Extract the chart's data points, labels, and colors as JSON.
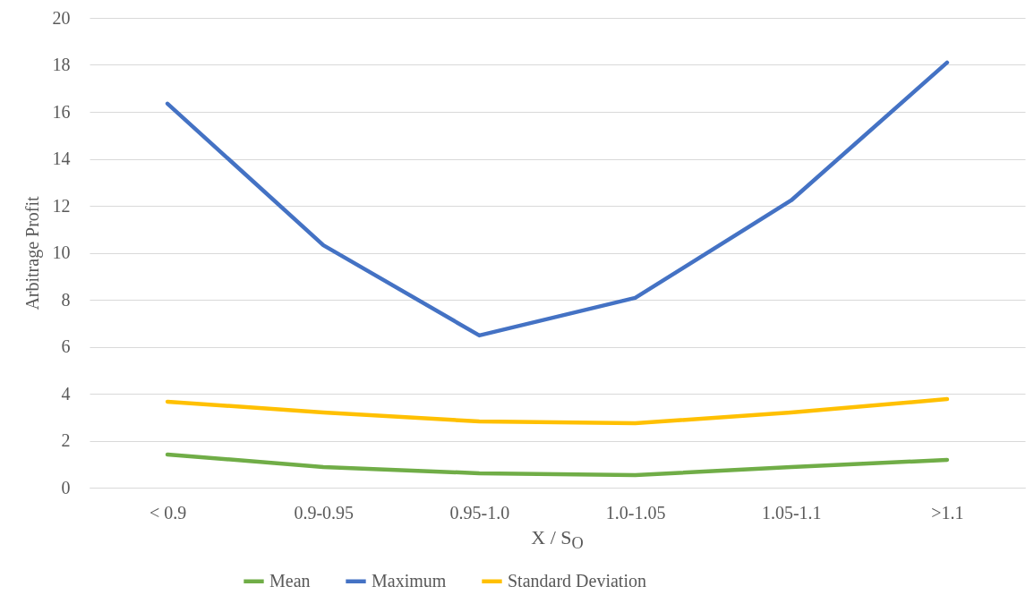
{
  "chart_data": {
    "type": "line",
    "xlabel": "X / S$_{O}$",
    "ylabel": "Arbitrage Profit",
    "categories": [
      "< 0.9",
      "0.9-0.95",
      "0.95-1.0",
      "1.0-1.05",
      "1.05-1.1",
      ">1.1"
    ],
    "series": [
      {
        "name": "Mean",
        "color": "#70ad47",
        "values": [
          1.41,
          0.88,
          0.61,
          0.53,
          0.88,
          1.18
        ]
      },
      {
        "name": "Maximum",
        "color": "#4472c4",
        "values": [
          16.35,
          10.32,
          6.48,
          8.08,
          12.23,
          18.1
        ]
      },
      {
        "name": "Standard Deviation",
        "color": "#ffc000",
        "values": [
          3.66,
          3.2,
          2.82,
          2.74,
          3.2,
          3.77
        ]
      }
    ],
    "ylim": [
      0,
      20
    ],
    "yticks": [
      0,
      2,
      4,
      6,
      8,
      10,
      12,
      14,
      16,
      18,
      20
    ],
    "grid": "y",
    "legend": "bottom",
    "marker": "none",
    "line_style": "solid"
  }
}
